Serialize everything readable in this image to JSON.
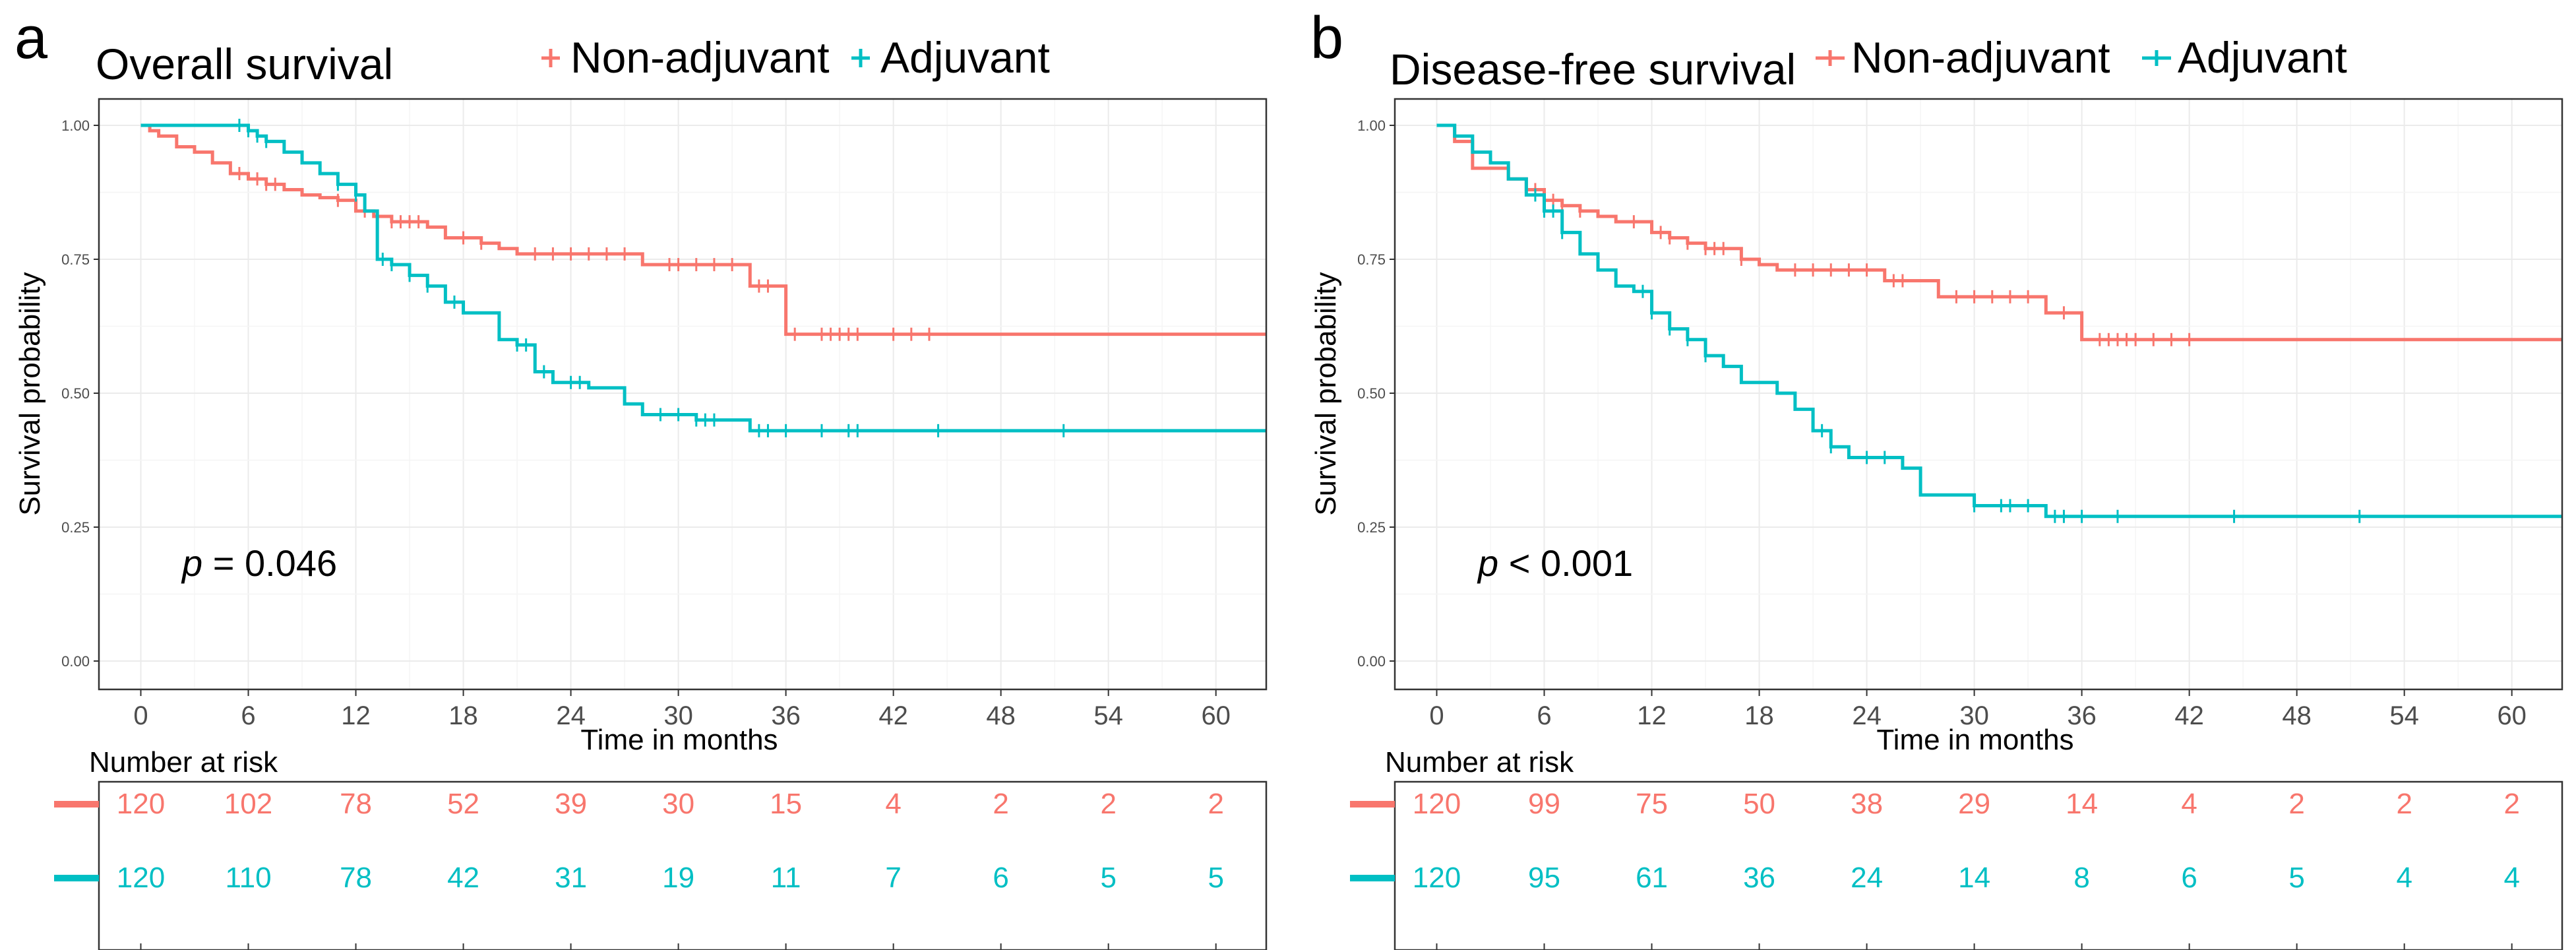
{
  "colors": {
    "non_adjuvant": "#F8766D",
    "adjuvant": "#00BFC4",
    "grid": "#ebebeb",
    "frame": "#333333"
  },
  "chart_data": [
    {
      "type": "line",
      "subtype": "kaplan-meier",
      "panel_letter": "a",
      "title": "Overall survival",
      "xlabel": "Time in months",
      "ylabel": "Survival probability",
      "xlim": [
        -3,
        63
      ],
      "ylim": [
        -0.03,
        1.05
      ],
      "x_ticks": [
        0,
        6,
        12,
        18,
        24,
        30,
        36,
        42,
        48,
        54,
        60
      ],
      "x_tick_labels": [
        "0",
        "6",
        "12",
        "18",
        "24",
        "30",
        "36",
        "42",
        "48",
        "54",
        "60"
      ],
      "y_ticks": [
        0,
        0.25,
        0.5,
        0.75,
        1.0
      ],
      "y_tick_labels": [
        "0.00",
        "0.25",
        "0.50",
        "0.75",
        "1.00"
      ],
      "legend_markers": [
        "+",
        "+"
      ],
      "p_value": {
        "symbol": "p",
        "text": " = 0.046"
      },
      "risk_table_title": "Number at risk",
      "series": [
        {
          "name": "Non-adjuvant",
          "color": "#F8766D",
          "steps": [
            [
              0,
              1.0
            ],
            [
              0.5,
              0.99
            ],
            [
              1,
              0.98
            ],
            [
              2,
              0.96
            ],
            [
              3,
              0.95
            ],
            [
              4,
              0.93
            ],
            [
              5,
              0.91
            ],
            [
              6,
              0.9
            ],
            [
              7,
              0.89
            ],
            [
              8,
              0.88
            ],
            [
              9,
              0.87
            ],
            [
              10,
              0.865
            ],
            [
              11,
              0.86
            ],
            [
              12,
              0.84
            ],
            [
              13,
              0.83
            ],
            [
              14,
              0.82
            ],
            [
              16,
              0.81
            ],
            [
              17,
              0.79
            ],
            [
              19,
              0.78
            ],
            [
              20,
              0.77
            ],
            [
              21,
              0.76
            ],
            [
              28,
              0.74
            ],
            [
              34,
              0.7
            ],
            [
              36,
              0.61
            ],
            [
              63,
              0.61
            ]
          ],
          "censor_x": [
            5.5,
            6.5,
            7,
            7.5,
            11,
            12.5,
            14,
            14.5,
            15,
            15.5,
            18,
            19,
            22,
            23,
            24,
            25,
            26,
            27,
            29.5,
            30,
            31,
            32,
            33,
            34.5,
            35,
            36.5,
            38,
            38.5,
            39,
            39.5,
            40,
            42,
            43,
            44
          ],
          "at_risk": [
            120,
            102,
            78,
            52,
            39,
            30,
            15,
            4,
            2,
            2,
            2
          ]
        },
        {
          "name": "Adjuvant",
          "color": "#00BFC4",
          "steps": [
            [
              0,
              1.0
            ],
            [
              6,
              0.99
            ],
            [
              6.5,
              0.98
            ],
            [
              7,
              0.97
            ],
            [
              8,
              0.95
            ],
            [
              9,
              0.93
            ],
            [
              10,
              0.91
            ],
            [
              11,
              0.89
            ],
            [
              12,
              0.87
            ],
            [
              12.5,
              0.84
            ],
            [
              13.2,
              0.75
            ],
            [
              14,
              0.74
            ],
            [
              15,
              0.72
            ],
            [
              16,
              0.7
            ],
            [
              17,
              0.67
            ],
            [
              18,
              0.65
            ],
            [
              20,
              0.6
            ],
            [
              21,
              0.59
            ],
            [
              22,
              0.54
            ],
            [
              23,
              0.52
            ],
            [
              25,
              0.51
            ],
            [
              27,
              0.48
            ],
            [
              28,
              0.46
            ],
            [
              31,
              0.45
            ],
            [
              34,
              0.43
            ],
            [
              63,
              0.43
            ]
          ],
          "censor_x": [
            5.5,
            6,
            6.5,
            7,
            11,
            12,
            13.5,
            14,
            15,
            16,
            17.5,
            21,
            21.5,
            22.5,
            24,
            24.5,
            29,
            30,
            31,
            31.5,
            32,
            34.5,
            35,
            36,
            38,
            39.5,
            40,
            44.5,
            51.5
          ],
          "at_risk": [
            120,
            110,
            78,
            42,
            31,
            19,
            11,
            7,
            6,
            5,
            5
          ]
        }
      ]
    },
    {
      "type": "line",
      "subtype": "kaplan-meier",
      "panel_letter": "b",
      "title": "Disease-free survival",
      "xlabel": "Time in months",
      "ylabel": "Survival probability",
      "xlim": [
        -3,
        63
      ],
      "ylim": [
        -0.03,
        1.05
      ],
      "x_ticks": [
        0,
        6,
        12,
        18,
        24,
        30,
        36,
        42,
        48,
        54,
        60
      ],
      "x_tick_labels": [
        "0",
        "6",
        "12",
        "18",
        "24",
        "30",
        "36",
        "42",
        "48",
        "54",
        "60"
      ],
      "y_ticks": [
        0,
        0.25,
        0.5,
        0.75,
        1.0
      ],
      "y_tick_labels": [
        "0.00",
        "0.25",
        "0.50",
        "0.75",
        "1.00"
      ],
      "legend_markers": [
        "+",
        "+"
      ],
      "p_value": {
        "symbol": "p",
        "text": " < 0.001"
      },
      "risk_table_title": "Number at risk",
      "series": [
        {
          "name": "Non-adjuvant",
          "color": "#F8766D",
          "steps": [
            [
              0,
              1.0
            ],
            [
              1,
              0.97
            ],
            [
              2,
              0.92
            ],
            [
              4,
              0.9
            ],
            [
              5,
              0.88
            ],
            [
              6,
              0.86
            ],
            [
              7,
              0.85
            ],
            [
              8,
              0.84
            ],
            [
              9,
              0.83
            ],
            [
              10,
              0.82
            ],
            [
              12,
              0.8
            ],
            [
              13,
              0.79
            ],
            [
              14,
              0.78
            ],
            [
              15,
              0.77
            ],
            [
              17,
              0.75
            ],
            [
              18,
              0.74
            ],
            [
              19,
              0.73
            ],
            [
              25,
              0.71
            ],
            [
              28,
              0.68
            ],
            [
              34,
              0.65
            ],
            [
              36,
              0.6
            ],
            [
              63,
              0.6
            ]
          ],
          "censor_x": [
            5.5,
            6,
            6.5,
            7,
            8,
            11,
            12.5,
            13,
            14,
            15,
            15.5,
            16,
            17,
            20,
            21,
            22,
            23,
            24,
            25.5,
            26,
            29,
            30,
            31,
            32,
            33,
            35,
            37,
            37.5,
            38,
            38.5,
            39,
            40,
            41,
            42
          ],
          "at_risk": [
            120,
            99,
            75,
            50,
            38,
            29,
            14,
            4,
            2,
            2,
            2
          ]
        },
        {
          "name": "Adjuvant",
          "color": "#00BFC4",
          "steps": [
            [
              0,
              1.0
            ],
            [
              1,
              0.98
            ],
            [
              2,
              0.95
            ],
            [
              3,
              0.93
            ],
            [
              4,
              0.9
            ],
            [
              5,
              0.87
            ],
            [
              6,
              0.84
            ],
            [
              7,
              0.8
            ],
            [
              8,
              0.76
            ],
            [
              9,
              0.73
            ],
            [
              10,
              0.7
            ],
            [
              11,
              0.69
            ],
            [
              12,
              0.65
            ],
            [
              13,
              0.62
            ],
            [
              14,
              0.6
            ],
            [
              15,
              0.57
            ],
            [
              16,
              0.55
            ],
            [
              17,
              0.52
            ],
            [
              19,
              0.5
            ],
            [
              20,
              0.47
            ],
            [
              21,
              0.43
            ],
            [
              22,
              0.4
            ],
            [
              23,
              0.38
            ],
            [
              26,
              0.36
            ],
            [
              27,
              0.31
            ],
            [
              30,
              0.29
            ],
            [
              34,
              0.27
            ],
            [
              63,
              0.27
            ]
          ],
          "censor_x": [
            5.5,
            6,
            6.5,
            7,
            11.5,
            12,
            13,
            14,
            15,
            21.5,
            22,
            24,
            25,
            30,
            31.5,
            32,
            33,
            34.5,
            35,
            36,
            38,
            44.5,
            51.5
          ],
          "at_risk": [
            120,
            95,
            61,
            36,
            24,
            14,
            8,
            6,
            5,
            4,
            4
          ]
        }
      ]
    }
  ]
}
